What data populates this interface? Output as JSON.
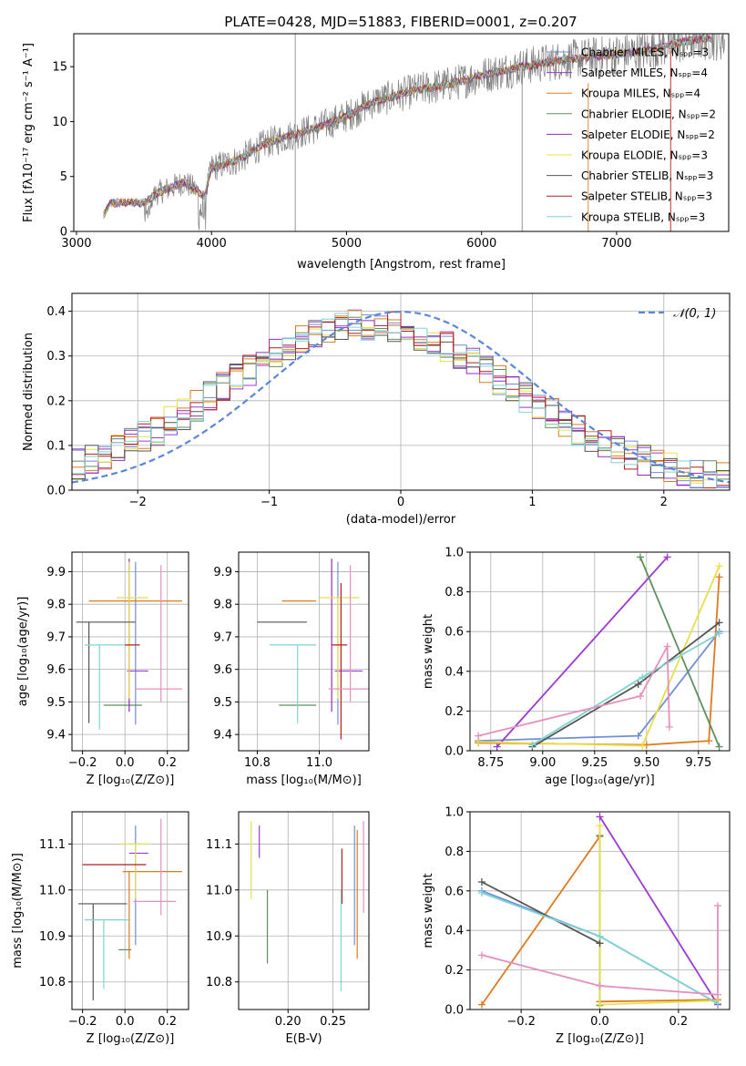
{
  "figure": {
    "title": "PLATE=0428, MJD=51883, FIBERID=0001, z=0.207"
  },
  "model_colors": [
    "#6f8fd8",
    "#9b3ad6",
    "#e07a1f",
    "#5e8f5e",
    "#8e2fb5",
    "#e8e04a",
    "#555555",
    "#b71c1c",
    "#7fd3d3",
    "#e58fbf"
  ],
  "chart_data": [
    {
      "id": "spectrum",
      "type": "line",
      "xlabel": "wavelength [Angstrom, rest frame]",
      "ylabel": "Flux [fλ10⁻¹⁷ erg cm⁻² s⁻¹ A⁻¹]",
      "xlim": [
        2980,
        7830
      ],
      "ylim": [
        0,
        18
      ],
      "xticks": [
        3000,
        4000,
        5000,
        6000,
        7000
      ],
      "yticks": [
        0,
        5,
        10,
        15
      ],
      "grid": false,
      "legend_position": "upper-right",
      "legend": [
        {
          "label": "Chabrier MILES, Nₛₚₚ=3",
          "color": "#6f8fd8"
        },
        {
          "label": "Salpeter MILES, Nₛₚₚ=4",
          "color": "#9b3ad6"
        },
        {
          "label": "Kroupa MILES, Nₛₚₚ=4",
          "color": "#e07a1f"
        },
        {
          "label": "Chabrier ELODIE, Nₛₚₚ=2",
          "color": "#5e8f5e"
        },
        {
          "label": "Salpeter ELODIE, Nₛₚₚ=2",
          "color": "#8e2fb5"
        },
        {
          "label": "Kroupa ELODIE, Nₛₚₚ=3",
          "color": "#e8e04a"
        },
        {
          "label": "Chabrier STELIB, Nₛₚₚ=3",
          "color": "#555555"
        },
        {
          "label": "Salpeter STELIB, Nₛₚₚ=3",
          "color": "#b71c1c"
        },
        {
          "label": "Kroupa STELIB, Nₛₚₚ=3",
          "color": "#7fd3d3"
        }
      ],
      "continuum_anchors": [
        [
          3200,
          1.5
        ],
        [
          3250,
          2.6
        ],
        [
          3400,
          2.6
        ],
        [
          3500,
          2.6
        ],
        [
          3600,
          3.5
        ],
        [
          3800,
          4.5
        ],
        [
          3950,
          3.2
        ],
        [
          4000,
          5.8
        ],
        [
          4200,
          6.5
        ],
        [
          4400,
          8.0
        ],
        [
          4600,
          8.8
        ],
        [
          4800,
          9.5
        ],
        [
          5000,
          10.5
        ],
        [
          5200,
          11.8
        ],
        [
          5500,
          12.8
        ],
        [
          5800,
          13.5
        ],
        [
          6000,
          14.2
        ],
        [
          6300,
          15.0
        ],
        [
          6600,
          15.6
        ],
        [
          6900,
          16.0
        ],
        [
          7200,
          16.4
        ],
        [
          7400,
          17.0
        ],
        [
          7600,
          17.5
        ]
      ],
      "data_noise": 1.6,
      "spikes": [
        [
          4620,
          18
        ],
        [
          6300,
          15.3
        ]
      ]
    },
    {
      "id": "residuals",
      "type": "step",
      "xlabel": "(data-model)/error",
      "ylabel": "Normed distribution",
      "xlim": [
        -2.5,
        2.5
      ],
      "ylim": [
        0,
        0.44
      ],
      "xticks": [
        -2,
        -1,
        0,
        1,
        2
      ],
      "yticks": [
        0.0,
        0.1,
        0.2,
        0.3,
        0.4
      ],
      "grid": true,
      "legend_position": "upper-right",
      "reference_curve": {
        "label": "𝒩(0, 1)",
        "color": "#5b87d9",
        "style": "dashed",
        "mean": 0,
        "sigma": 1
      },
      "bins": 50,
      "histogram_peak_center": -0.25,
      "histogram_sigma": 1.1
    },
    {
      "id": "age_vs_Z",
      "type": "errorbar",
      "xlabel": "Z [log₁₀(Z/Z⊙)]",
      "ylabel": "age  [log₁₀(age/yr)]",
      "xlim": [
        -0.25,
        0.3
      ],
      "ylim": [
        9.35,
        9.96
      ],
      "xticks": [
        -0.2,
        0.0,
        0.2
      ],
      "yticks": [
        9.4,
        9.5,
        9.6,
        9.7,
        9.8,
        9.9
      ],
      "grid": true,
      "points": [
        {
          "x": 0.05,
          "xerr": [
            0.0,
            0.0
          ],
          "y": 9.67,
          "yerr": [
            0.24,
            0.26
          ],
          "color": "#6f8fd8"
        },
        {
          "x": 0.04,
          "xerr": [
            0.03,
            0.07
          ],
          "y": 9.595,
          "yerr": [
            0.0,
            0.0
          ],
          "color": "#9b3ad6"
        },
        {
          "x": 0.0,
          "xerr": [
            0.17,
            0.27
          ],
          "y": 9.81,
          "yerr": [
            0.0,
            0.0
          ],
          "color": "#e07a1f"
        },
        {
          "x": 0.01,
          "xerr": [
            0.11,
            0.07
          ],
          "y": 9.49,
          "yerr": [
            0.0,
            0.0
          ],
          "color": "#5e8f5e"
        },
        {
          "x": 0.02,
          "xerr": [
            0.0,
            0.0
          ],
          "y": 9.66,
          "yerr": [
            0.19,
            0.28
          ],
          "color": "#8e2fb5"
        },
        {
          "x": 0.02,
          "xerr": [
            0.06,
            0.09
          ],
          "y": 9.82,
          "yerr": [
            0.31,
            0.11
          ],
          "color": "#e8e04a"
        },
        {
          "x": -0.17,
          "xerr": [
            0.06,
            0.22
          ],
          "y": 9.745,
          "yerr": [
            0.31,
            0.0
          ],
          "color": "#555555"
        },
        {
          "x": 0.0,
          "xerr": [
            0.0,
            0.07
          ],
          "y": 9.675,
          "yerr": [
            0.0,
            0.0
          ],
          "color": "#b71c1c"
        },
        {
          "x": -0.12,
          "xerr": [
            0.07,
            0.12
          ],
          "y": 9.675,
          "yerr": [
            0.26,
            0.0
          ],
          "color": "#7fd3d3"
        },
        {
          "x": 0.17,
          "xerr": [
            0.12,
            0.1
          ],
          "y": 9.54,
          "yerr": [
            0.04,
            0.38
          ],
          "color": "#e58fbf"
        }
      ]
    },
    {
      "id": "age_vs_mass",
      "type": "errorbar",
      "xlabel": "mass [log₁₀(M/M⊙)]",
      "ylabel": "",
      "xlim": [
        10.74,
        11.16
      ],
      "ylim": [
        9.35,
        9.96
      ],
      "xticks": [
        10.8,
        11.0
      ],
      "yticks": [
        9.4,
        9.5,
        9.6,
        9.7,
        9.8,
        9.9
      ],
      "grid": true,
      "points": [
        {
          "x": 11.06,
          "xerr": [
            0.0,
            0.0
          ],
          "y": 9.67,
          "yerr": [
            0.24,
            0.26
          ],
          "color": "#6f8fd8"
        },
        {
          "x": 11.08,
          "xerr": [
            0.03,
            0.06
          ],
          "y": 9.595,
          "yerr": [
            0.0,
            0.0
          ],
          "color": "#9b3ad6"
        },
        {
          "x": 10.99,
          "xerr": [
            0.11,
            0.0
          ],
          "y": 9.81,
          "yerr": [
            0.0,
            0.0
          ],
          "color": "#e07a1f"
        },
        {
          "x": 10.93,
          "xerr": [
            0.06,
            0.06
          ],
          "y": 9.49,
          "yerr": [
            0.0,
            0.0
          ],
          "color": "#5e8f5e"
        },
        {
          "x": 11.04,
          "xerr": [
            0.0,
            0.0
          ],
          "y": 9.66,
          "yerr": [
            0.19,
            0.28
          ],
          "color": "#8e2fb5"
        },
        {
          "x": 11.06,
          "xerr": [
            0.06,
            0.07
          ],
          "y": 9.82,
          "yerr": [
            0.31,
            0.0
          ],
          "color": "#e8e04a"
        },
        {
          "x": 10.91,
          "xerr": [
            0.11,
            0.05
          ],
          "y": 9.745,
          "yerr": [
            0.0,
            0.0
          ],
          "color": "#555555"
        },
        {
          "x": 11.07,
          "xerr": [
            0.03,
            0.02
          ],
          "y": 9.675,
          "yerr": [
            0.29,
            0.19
          ],
          "color": "#b71c1c"
        },
        {
          "x": 10.93,
          "xerr": [
            0.09,
            0.06
          ],
          "y": 9.675,
          "yerr": [
            0.24,
            0.0
          ],
          "color": "#7fd3d3"
        },
        {
          "x": 11.1,
          "xerr": [
            0.07,
            0.06
          ],
          "y": 9.54,
          "yerr": [
            0.04,
            0.38
          ],
          "color": "#e58fbf"
        }
      ]
    },
    {
      "id": "mass_weight_vs_age",
      "type": "line",
      "xlabel": "age  [log₁₀(age/yr)]",
      "ylabel": "mass weight",
      "xlim": [
        8.65,
        9.9
      ],
      "ylim": [
        0,
        1
      ],
      "xticks": [
        8.75,
        9.0,
        9.25,
        9.5,
        9.75
      ],
      "yticks": [
        0.0,
        0.2,
        0.4,
        0.6,
        0.8,
        1.0
      ],
      "grid": true,
      "series": [
        {
          "color": "#6f8fd8",
          "x": [
            8.69,
            9.46,
            9.85
          ],
          "y": [
            0.05,
            0.075,
            0.6
          ]
        },
        {
          "color": "#9b3ad6",
          "x": [
            8.78,
            9.6
          ],
          "y": [
            0.02,
            0.975
          ]
        },
        {
          "color": "#e07a1f",
          "x": [
            8.69,
            9.5,
            9.8,
            9.85
          ],
          "y": [
            0.04,
            0.03,
            0.05,
            0.875
          ]
        },
        {
          "color": "#5e8f5e",
          "x": [
            9.47,
            9.85
          ],
          "y": [
            0.975,
            0.02
          ]
        },
        {
          "color": "#e8e04a",
          "x": [
            8.69,
            9.48,
            9.85
          ],
          "y": [
            0.045,
            0.025,
            0.93
          ]
        },
        {
          "color": "#555555",
          "x": [
            8.95,
            9.46,
            9.85
          ],
          "y": [
            0.02,
            0.335,
            0.645
          ]
        },
        {
          "color": "#7fd3d3",
          "x": [
            8.95,
            9.48,
            9.85
          ],
          "y": [
            0.03,
            0.37,
            0.59
          ]
        },
        {
          "color": "#e58fbf",
          "x": [
            8.69,
            9.47,
            9.6,
            9.61
          ],
          "y": [
            0.075,
            0.275,
            0.525,
            0.12
          ]
        }
      ]
    },
    {
      "id": "mass_vs_Z",
      "type": "errorbar",
      "xlabel": "Z [log₁₀(Z/Z⊙)]",
      "ylabel": "mass [log₁₀(M/M⊙)]",
      "xlim": [
        -0.25,
        0.3
      ],
      "ylim": [
        10.74,
        11.17
      ],
      "xticks": [
        -0.2,
        0.0,
        0.2
      ],
      "yticks": [
        10.8,
        10.9,
        11.0,
        11.1
      ],
      "grid": true,
      "points": [
        {
          "x": 0.05,
          "xerr": [
            0.0,
            0.0
          ],
          "y": 11.03,
          "yerr": [
            0.15,
            0.11
          ],
          "color": "#6f8fd8"
        },
        {
          "x": 0.05,
          "xerr": [
            0.03,
            0.06
          ],
          "y": 11.08,
          "yerr": [
            0.0,
            0.0
          ],
          "color": "#9b3ad6"
        },
        {
          "x": 0.02,
          "xerr": [
            0.03,
            0.25
          ],
          "y": 11.04,
          "yerr": [
            0.19,
            0.0
          ],
          "color": "#e07a1f"
        },
        {
          "x": 0.03,
          "xerr": [
            0.06,
            0.0
          ],
          "y": 10.87,
          "yerr": [
            0.0,
            0.0
          ],
          "color": "#5e8f5e"
        },
        {
          "x": 0.05,
          "xerr": [
            0.0,
            0.0
          ],
          "y": 11.08,
          "yerr": [
            0.0,
            0.0
          ],
          "color": "#8e2fb5"
        },
        {
          "x": 0.05,
          "xerr": [
            0.07,
            0.07
          ],
          "y": 11.1,
          "yerr": [
            0.12,
            0.0
          ],
          "color": "#e8e04a"
        },
        {
          "x": -0.15,
          "xerr": [
            0.07,
            0.16
          ],
          "y": 10.97,
          "yerr": [
            0.21,
            0.0
          ],
          "color": "#555555"
        },
        {
          "x": -0.1,
          "xerr": [
            0.1,
            0.2
          ],
          "y": 11.055,
          "yerr": [
            0.0,
            0.0
          ],
          "color": "#b71c1c"
        },
        {
          "x": -0.1,
          "xerr": [
            0.09,
            0.12
          ],
          "y": 10.935,
          "yerr": [
            0.15,
            0.0
          ],
          "color": "#7fd3d3"
        },
        {
          "x": 0.17,
          "xerr": [
            0.13,
            0.07
          ],
          "y": 10.975,
          "yerr": [
            0.03,
            0.18
          ],
          "color": "#e58fbf"
        }
      ]
    },
    {
      "id": "mass_vs_EBV",
      "type": "errorbar",
      "xlabel": "E(B-V)",
      "ylabel": "",
      "xlim": [
        0.145,
        0.29
      ],
      "ylim": [
        10.74,
        11.17
      ],
      "xticks": [
        0.2,
        0.25
      ],
      "yticks": [
        10.8,
        10.9,
        11.0,
        11.1
      ],
      "grid": true,
      "points": [
        {
          "x": 0.274,
          "xerr": [
            0.0,
            0.0
          ],
          "y": 11.03,
          "yerr": [
            0.15,
            0.11
          ],
          "color": "#6f8fd8"
        },
        {
          "x": 0.168,
          "xerr": [
            0.0,
            0.0
          ],
          "y": 11.07,
          "yerr": [
            0.0,
            0.07
          ],
          "color": "#9b3ad6"
        },
        {
          "x": 0.277,
          "xerr": [
            0.0,
            0.0
          ],
          "y": 11.04,
          "yerr": [
            0.19,
            0.09
          ],
          "color": "#e07a1f"
        },
        {
          "x": 0.177,
          "xerr": [
            0.0,
            0.0
          ],
          "y": 10.9,
          "yerr": [
            0.06,
            0.1
          ],
          "color": "#5e8f5e"
        },
        {
          "x": 0.159,
          "xerr": [
            0.0,
            0.0
          ],
          "y": 11.06,
          "yerr": [
            0.08,
            0.09
          ],
          "color": "#e8e04a"
        },
        {
          "x": 0.26,
          "xerr": [
            0.0,
            0.0
          ],
          "y": 11.03,
          "yerr": [
            0.06,
            0.06
          ],
          "color": "#b71c1c"
        },
        {
          "x": 0.259,
          "xerr": [
            0.0,
            0.0
          ],
          "y": 10.89,
          "yerr": [
            0.11,
            0.11
          ],
          "color": "#7fd3d3"
        },
        {
          "x": 0.284,
          "xerr": [
            0.0,
            0.0
          ],
          "y": 11.05,
          "yerr": [
            0.1,
            0.1
          ],
          "color": "#e58fbf"
        }
      ]
    },
    {
      "id": "mass_weight_vs_Z",
      "type": "line",
      "xlabel": "Z [log₁₀(Z/Z⊙)]",
      "ylabel": "mass weight",
      "xlim": [
        -0.33,
        0.33
      ],
      "ylim": [
        0,
        1
      ],
      "xticks": [
        -0.2,
        0.0,
        0.2
      ],
      "yticks": [
        0.0,
        0.2,
        0.4,
        0.6,
        0.8,
        1.0
      ],
      "grid": true,
      "series": [
        {
          "color": "#6f8fd8",
          "x": [
            -0.3,
            0.0,
            0.3
          ],
          "y": [
            0.6,
            0.37,
            0.03
          ]
        },
        {
          "color": "#9b3ad6",
          "x": [
            0.0,
            0.3
          ],
          "y": [
            0.975,
            0.025
          ]
        },
        {
          "color": "#e07a1f",
          "x": [
            -0.3,
            0.0,
            0.0,
            0.3
          ],
          "y": [
            0.025,
            0.875,
            0.04,
            0.05
          ]
        },
        {
          "color": "#5e8f5e",
          "x": [
            0.0,
            0.0
          ],
          "y": [
            0.88,
            0.02
          ]
        },
        {
          "color": "#e8e04a",
          "x": [
            0.0,
            0.0,
            0.3
          ],
          "y": [
            0.93,
            0.025,
            0.045
          ]
        },
        {
          "color": "#555555",
          "x": [
            -0.3,
            0.0
          ],
          "y": [
            0.645,
            0.335
          ]
        },
        {
          "color": "#7fd3d3",
          "x": [
            -0.3,
            0.0,
            0.3
          ],
          "y": [
            0.59,
            0.37,
            0.03
          ]
        },
        {
          "color": "#e58fbf",
          "x": [
            -0.3,
            0.0,
            0.3,
            0.3
          ],
          "y": [
            0.275,
            0.12,
            0.075,
            0.525
          ]
        }
      ]
    }
  ]
}
